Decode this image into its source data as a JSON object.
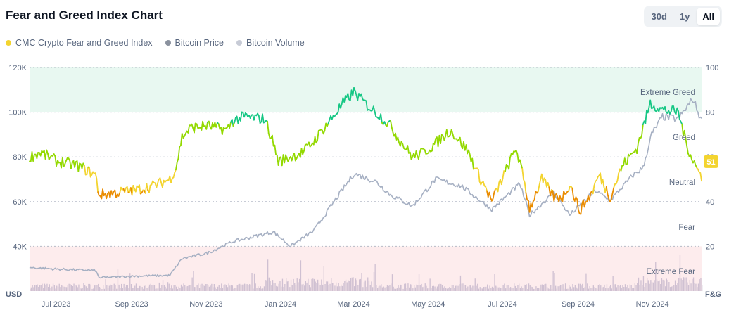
{
  "title": "Fear and Greed Index Chart",
  "range_buttons": [
    {
      "label": "30d",
      "active": false
    },
    {
      "label": "1y",
      "active": false
    },
    {
      "label": "All",
      "active": true
    }
  ],
  "legend": [
    {
      "label": "CMC Crypto Fear and Greed Index",
      "color": "#f3d42f"
    },
    {
      "label": "Bitcoin Price",
      "color": "#8a919e"
    },
    {
      "label": "Bitcoin Volume",
      "color": "#c7cbd6"
    }
  ],
  "colors": {
    "extreme_greed": "#16c784",
    "greed": "#93d900",
    "neutral": "#f3d42f",
    "fear": "#ea8c00",
    "extreme_fear": "#ea3943",
    "price": "#a6b0c3",
    "volume": "#c7b9cc",
    "greed_band": "#e8f8f1",
    "fear_band": "#fdeced"
  },
  "chart_data": {
    "type": "line",
    "x_tick_labels": [
      "Jul 2023",
      "Sep 2023",
      "Nov 2023",
      "Jan 2024",
      "Mar 2024",
      "May 2024",
      "Jul 2024",
      "Sep 2024",
      "Nov 2024"
    ],
    "left_axis": {
      "label": "USD",
      "ticks": [
        "120K",
        "100K",
        "80K",
        "60K",
        "40K"
      ],
      "range": [
        20000,
        120000
      ]
    },
    "right_axis": {
      "label": "F&G",
      "ticks": [
        "100",
        "80",
        "60",
        "40",
        "20"
      ],
      "range": [
        0,
        100
      ]
    },
    "zone_labels": [
      "Extreme Greed",
      "Greed",
      "Neutral",
      "Fear",
      "Extreme Fear"
    ],
    "current_value": "51",
    "x_range": [
      "2023-06-22",
      "2024-12-24"
    ],
    "fear_greed": {
      "dates": [
        "2023-06-22",
        "2023-07-01",
        "2023-07-15",
        "2023-08-01",
        "2023-08-15",
        "2023-08-18",
        "2023-09-01",
        "2023-09-15",
        "2023-10-01",
        "2023-10-15",
        "2023-10-20",
        "2023-10-25",
        "2023-11-01",
        "2023-11-15",
        "2023-12-01",
        "2023-12-05",
        "2023-12-15",
        "2024-01-01",
        "2024-01-08",
        "2024-01-12",
        "2024-01-22",
        "2024-02-01",
        "2024-02-10",
        "2024-02-20",
        "2024-03-01",
        "2024-03-05",
        "2024-03-14",
        "2024-03-25",
        "2024-04-01",
        "2024-04-13",
        "2024-04-20",
        "2024-05-01",
        "2024-05-10",
        "2024-05-20",
        "2024-06-01",
        "2024-06-15",
        "2024-06-24",
        "2024-07-01",
        "2024-07-05",
        "2024-07-15",
        "2024-07-25",
        "2024-08-01",
        "2024-08-05",
        "2024-08-15",
        "2024-08-25",
        "2024-09-01",
        "2024-09-07",
        "2024-09-15",
        "2024-09-25",
        "2024-10-01",
        "2024-10-10",
        "2024-10-20",
        "2024-11-01",
        "2024-11-06",
        "2024-11-12",
        "2024-11-22",
        "2024-12-05",
        "2024-12-12",
        "2024-12-20",
        "2024-12-24"
      ],
      "values": [
        60,
        62,
        58,
        56,
        52,
        43,
        44,
        45,
        47,
        50,
        55,
        69,
        73,
        74,
        72,
        76,
        78,
        77,
        66,
        58,
        60,
        62,
        67,
        74,
        81,
        84,
        89,
        83,
        80,
        74,
        68,
        60,
        62,
        66,
        72,
        63,
        52,
        45,
        40,
        52,
        64,
        48,
        37,
        50,
        42,
        42,
        48,
        36,
        44,
        52,
        42,
        56,
        64,
        73,
        84,
        81,
        80,
        65,
        55,
        51
      ]
    },
    "price": {
      "dates": [
        "2023-06-22",
        "2023-07-15",
        "2023-08-15",
        "2023-08-18",
        "2023-09-15",
        "2023-10-15",
        "2023-10-25",
        "2023-11-15",
        "2023-12-05",
        "2024-01-08",
        "2024-01-22",
        "2024-02-10",
        "2024-02-28",
        "2024-03-14",
        "2024-04-01",
        "2024-04-13",
        "2024-05-01",
        "2024-05-20",
        "2024-06-10",
        "2024-07-05",
        "2024-07-28",
        "2024-08-05",
        "2024-08-25",
        "2024-09-07",
        "2024-09-28",
        "2024-10-10",
        "2024-10-29",
        "2024-11-06",
        "2024-11-13",
        "2024-11-22",
        "2024-12-05",
        "2024-12-17",
        "2024-12-24"
      ],
      "values": [
        30500,
        29800,
        29200,
        26000,
        26700,
        27000,
        34500,
        37000,
        42000,
        46500,
        40000,
        47000,
        61000,
        72500,
        69000,
        63000,
        58000,
        70000,
        67000,
        56500,
        68000,
        54000,
        64000,
        54000,
        65000,
        60500,
        72000,
        75000,
        90000,
        98000,
        97000,
        106000,
        96000
      ]
    },
    "volume_note": "daily bars along chart bottom"
  }
}
